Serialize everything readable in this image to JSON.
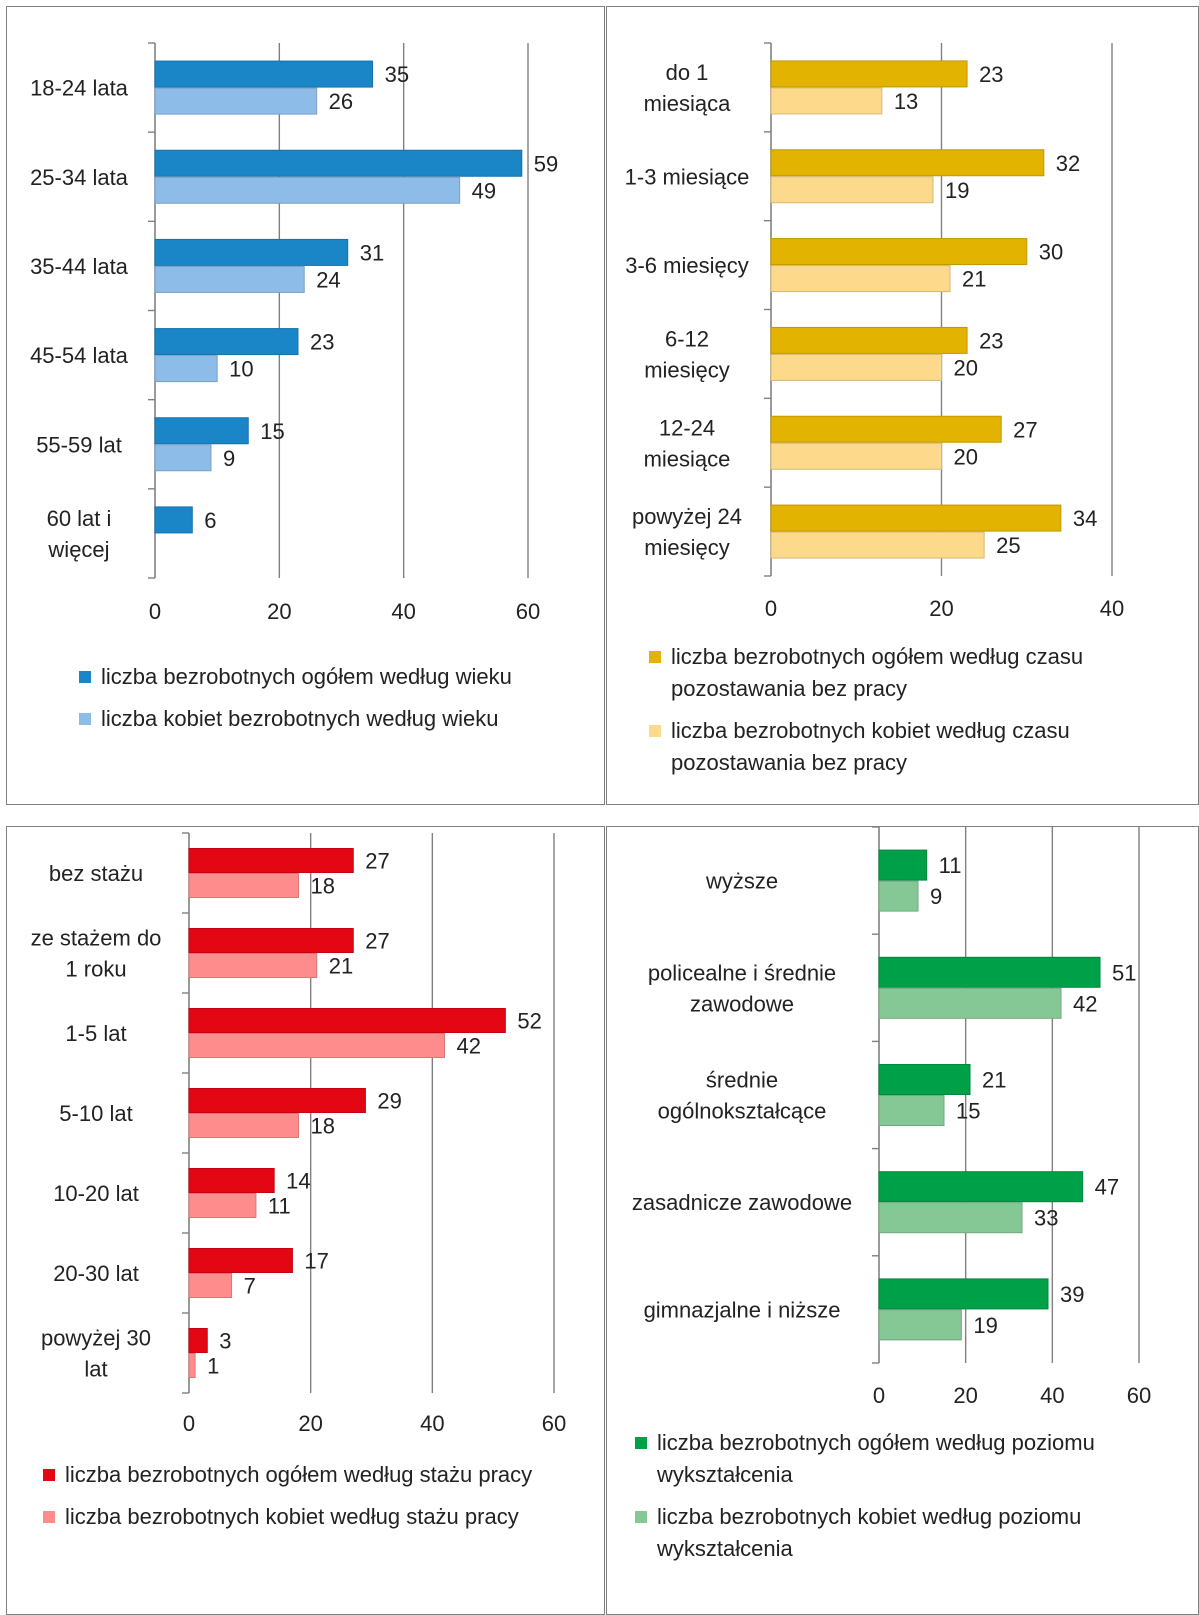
{
  "charts": [
    {
      "type": "bar",
      "orientation": "horizontal",
      "categories": [
        "18-24 lata",
        "25-34 lata",
        "35-44 lata",
        "45-54 lata",
        "55-59 lat",
        "60 lat i więcej"
      ],
      "series": [
        {
          "name": "liczba bezrobotnych ogółem według wieku",
          "color": "#1a86c8",
          "values": [
            35,
            59,
            31,
            23,
            15,
            6
          ]
        },
        {
          "name": "liczba kobiet bezrobotnych według wieku",
          "color": "#8dbce8",
          "values": [
            26,
            49,
            24,
            10,
            9,
            null
          ]
        }
      ],
      "xlim": [
        0,
        60
      ],
      "xticks": [
        "0",
        "20",
        "40",
        "60"
      ],
      "grid": true,
      "legend_position": "bottom"
    },
    {
      "type": "bar",
      "orientation": "horizontal",
      "categories": [
        "do 1 miesiąca",
        "1-3 miesiące",
        "3-6 miesięcy",
        "6-12 miesięcy",
        "12-24 miesiące",
        "powyżej 24 miesięcy"
      ],
      "series": [
        {
          "name": "liczba bezrobotnych ogółem według czasu pozostawania bez pracy",
          "color": "#e2b300",
          "values": [
            23,
            32,
            30,
            23,
            27,
            34
          ]
        },
        {
          "name": "liczba bezrobotnych kobiet według czasu pozostawania bez pracy",
          "color": "#fcd98b",
          "values": [
            13,
            19,
            21,
            20,
            20,
            25
          ]
        }
      ],
      "xlim": [
        0,
        40
      ],
      "xticks": [
        "0",
        "20",
        "40"
      ],
      "grid": true,
      "legend_position": "bottom"
    },
    {
      "type": "bar",
      "orientation": "horizontal",
      "categories": [
        "bez stażu",
        "ze stażem do 1 roku",
        "1-5 lat",
        "5-10 lat",
        "10-20 lat",
        "20-30 lat",
        "powyżej 30 lat"
      ],
      "series": [
        {
          "name": "liczba bezrobotnych ogółem według stażu pracy",
          "color": "#e30613",
          "values": [
            27,
            27,
            52,
            29,
            14,
            17,
            3
          ]
        },
        {
          "name": "liczba bezrobotnych kobiet według stażu pracy",
          "color": "#ff8c8c",
          "values": [
            18,
            21,
            42,
            18,
            11,
            7,
            1
          ]
        }
      ],
      "xlim": [
        0,
        60
      ],
      "xticks": [
        "0",
        "20",
        "40",
        "60"
      ],
      "grid": true,
      "legend_position": "bottom"
    },
    {
      "type": "bar",
      "orientation": "horizontal",
      "categories": [
        "wyższe",
        "policealne i średnie zawodowe",
        "średnie ogólnokształcące",
        "zasadnicze zawodowe",
        "gimnazjalne i niższe"
      ],
      "series": [
        {
          "name": "liczba bezrobotnych ogółem według poziomu wykształcenia",
          "color": "#00a049",
          "values": [
            11,
            51,
            21,
            47,
            39
          ]
        },
        {
          "name": "liczba bezrobotnych kobiet według poziomu wykształcenia",
          "color": "#86c796",
          "values": [
            9,
            42,
            15,
            33,
            19
          ]
        }
      ],
      "xlim": [
        0,
        60
      ],
      "xticks": [
        "0",
        "20",
        "40",
        "60"
      ],
      "grid": true,
      "legend_position": "bottom"
    }
  ]
}
